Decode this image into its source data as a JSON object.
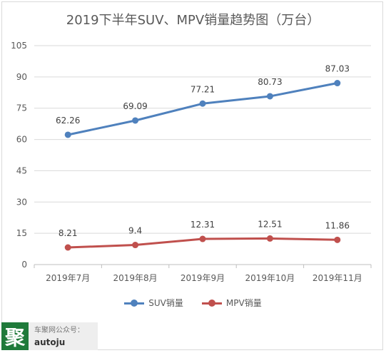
{
  "chart_data": {
    "type": "line",
    "title": "2019下半年SUV、MPV销量趋势图（万台）",
    "categories": [
      "2019年7月",
      "2019年8月",
      "2019年9月",
      "2019年10月",
      "2019年11月"
    ],
    "series": [
      {
        "name": "SUV销量",
        "values": [
          62.26,
          69.09,
          77.21,
          80.73,
          87.03
        ],
        "labels": [
          "62.26",
          "69.09",
          "77.21",
          "80.73",
          "87.03"
        ],
        "color": "#4f81bd"
      },
      {
        "name": "MPV销量",
        "values": [
          8.21,
          9.4,
          12.31,
          12.51,
          11.86
        ],
        "labels": [
          "8.21",
          "9.4",
          "12.31",
          "12.51",
          "11.86"
        ],
        "color": "#c0504d"
      }
    ],
    "yticks": [
      "0",
      "15",
      "30",
      "45",
      "60",
      "75",
      "90",
      "105"
    ],
    "ylim": [
      0,
      105
    ],
    "grid": true,
    "legend_position": "bottom"
  },
  "watermark": {
    "logo_char": "聚",
    "line1": "车聚网公众号：",
    "line2": "autoju"
  }
}
